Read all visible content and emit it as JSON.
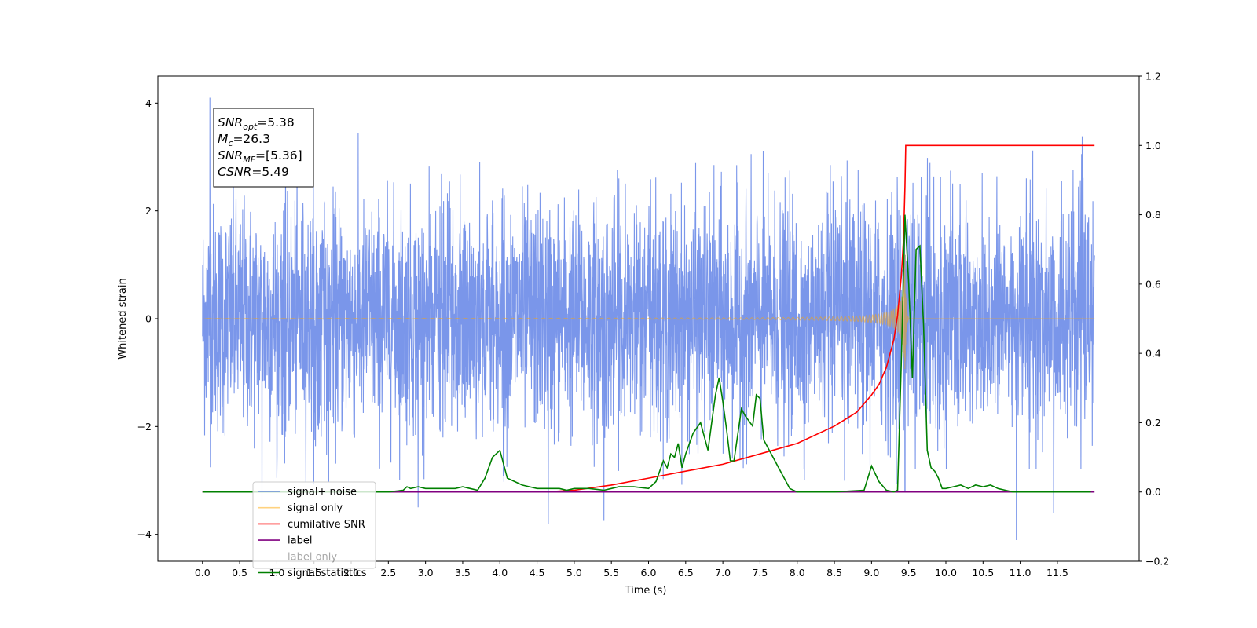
{
  "chart_data": {
    "type": "line",
    "title": "",
    "xlabel": "Time (s)",
    "ylabel": "Whitened strain",
    "y2label": "",
    "xlim": [
      -0.6,
      12.6
    ],
    "ylim": [
      -4.5,
      4.5
    ],
    "y2lim": [
      -0.2,
      1.2
    ],
    "x_ticks": [
      0.0,
      0.5,
      1.0,
      1.5,
      2.0,
      2.5,
      3.0,
      3.5,
      4.0,
      4.5,
      5.0,
      5.5,
      6.0,
      6.5,
      7.0,
      7.5,
      8.0,
      8.5,
      9.0,
      9.5,
      10.0,
      10.5,
      11.0,
      11.5
    ],
    "x_tick_labels": [
      "0.0",
      "0.5",
      "1.0",
      "1.5",
      "2.0",
      "2.5",
      "3.0",
      "3.5",
      "4.0",
      "4.5",
      "5.0",
      "5.5",
      "6.0",
      "6.5",
      "7.0",
      "7.5",
      "8.0",
      "8.5",
      "9.0",
      "9.5",
      "10.0",
      "10.5",
      "11.0",
      "11.5"
    ],
    "y_ticks": [
      -4,
      -2,
      0,
      2,
      4
    ],
    "y_tick_labels": [
      "−4",
      "−2",
      "0",
      "2",
      "4"
    ],
    "y2_ticks": [
      -0.2,
      0.0,
      0.2,
      0.4,
      0.6,
      0.8,
      1.0,
      1.2
    ],
    "y2_tick_labels": [
      "−0.2",
      "0.0",
      "0.2",
      "0.4",
      "0.6",
      "0.8",
      "1.0",
      "1.2"
    ],
    "grid": false,
    "legend_position": "lower-left",
    "annotation": {
      "lines": [
        {
          "sym": "SNR",
          "sub": "opt",
          "val": "=5.38"
        },
        {
          "sym": "M",
          "sub": "c",
          "val": "=26.3"
        },
        {
          "sym": "SNR",
          "sub": "MF",
          "val": "=[5.36]"
        },
        {
          "sym": "CSNR",
          "sub": "",
          "val": "=5.49"
        }
      ]
    },
    "series": [
      {
        "name": "signal+ noise",
        "axis": "left",
        "color": "#4169E1",
        "opacity": 0.7,
        "kind": "noise",
        "x_range": [
          0.0,
          12.0
        ],
        "envelope": [
          -3.1,
          3.6
        ],
        "outliers": [
          [
            0.1,
            4.1
          ],
          [
            11.45,
            3.7
          ],
          [
            9.45,
            -3.2
          ],
          [
            4.65,
            -3.8
          ],
          [
            10.95,
            -4.1
          ],
          [
            5.4,
            -3.75
          ],
          [
            2.9,
            -3.5
          ],
          [
            11.45,
            -3.6
          ],
          [
            0.8,
            -3.45
          ]
        ]
      },
      {
        "name": "signal only",
        "axis": "left",
        "color": "#FFA500",
        "opacity": 0.5,
        "kind": "chirp",
        "x_range": [
          0.0,
          12.0
        ],
        "merger_time": 9.45,
        "peak_amplitude": 1.2
      },
      {
        "name": "cumilative SNR",
        "axis": "right",
        "color": "#FF0000",
        "x": [
          0.0,
          4.6,
          5.0,
          5.5,
          6.0,
          6.5,
          7.0,
          7.5,
          8.0,
          8.5,
          8.8,
          9.0,
          9.1,
          9.2,
          9.3,
          9.35,
          9.4,
          9.43,
          9.45,
          9.46,
          12.0
        ],
        "values": [
          0.0,
          0.0,
          0.005,
          0.02,
          0.04,
          0.06,
          0.08,
          0.11,
          0.14,
          0.19,
          0.23,
          0.28,
          0.31,
          0.36,
          0.44,
          0.51,
          0.62,
          0.73,
          0.88,
          1.0,
          1.0
        ]
      },
      {
        "name": "label",
        "axis": "right",
        "color": "#800080",
        "x": [
          0.0,
          12.0
        ],
        "values": [
          0.0,
          0.0
        ]
      },
      {
        "name": "label only",
        "axis": "right",
        "color": "#000000",
        "hidden": true,
        "x": [],
        "values": []
      },
      {
        "name": "signal statistics",
        "axis": "right",
        "color": "#008000",
        "x": [
          0.0,
          2.5,
          2.7,
          2.75,
          2.8,
          2.9,
          3.0,
          3.2,
          3.4,
          3.5,
          3.6,
          3.7,
          3.8,
          3.9,
          3.95,
          4.0,
          4.1,
          4.2,
          4.3,
          4.4,
          4.5,
          4.6,
          4.7,
          4.8,
          4.9,
          5.0,
          5.2,
          5.4,
          5.5,
          5.6,
          5.8,
          6.0,
          6.1,
          6.2,
          6.25,
          6.3,
          6.35,
          6.4,
          6.45,
          6.5,
          6.6,
          6.7,
          6.8,
          6.85,
          6.9,
          6.95,
          7.0,
          7.05,
          7.1,
          7.15,
          7.25,
          7.3,
          7.4,
          7.45,
          7.5,
          7.55,
          7.6,
          7.7,
          7.8,
          7.9,
          8.0,
          8.5,
          8.9,
          9.0,
          9.1,
          9.2,
          9.3,
          9.35,
          9.4,
          9.45,
          9.5,
          9.55,
          9.6,
          9.65,
          9.7,
          9.75,
          9.8,
          9.85,
          9.9,
          9.95,
          10.0,
          10.1,
          10.2,
          10.3,
          10.4,
          10.5,
          10.6,
          10.7,
          10.8,
          10.9,
          11.0,
          11.5,
          11.95
        ],
        "values": [
          0.0,
          0.0,
          0.005,
          0.015,
          0.01,
          0.015,
          0.01,
          0.01,
          0.01,
          0.015,
          0.01,
          0.005,
          0.04,
          0.1,
          0.11,
          0.12,
          0.04,
          0.03,
          0.02,
          0.015,
          0.01,
          0.01,
          0.01,
          0.01,
          0.005,
          0.01,
          0.01,
          0.005,
          0.01,
          0.015,
          0.015,
          0.01,
          0.03,
          0.09,
          0.07,
          0.11,
          0.1,
          0.14,
          0.07,
          0.11,
          0.17,
          0.2,
          0.12,
          0.2,
          0.28,
          0.33,
          0.26,
          0.18,
          0.09,
          0.09,
          0.24,
          0.22,
          0.19,
          0.28,
          0.27,
          0.15,
          0.13,
          0.09,
          0.05,
          0.01,
          0.0,
          0.0,
          0.005,
          0.075,
          0.03,
          0.005,
          0.0,
          0.005,
          0.37,
          0.8,
          0.6,
          0.33,
          0.7,
          0.71,
          0.48,
          0.12,
          0.07,
          0.06,
          0.04,
          0.01,
          0.01,
          0.015,
          0.02,
          0.01,
          0.02,
          0.015,
          0.02,
          0.01,
          0.005,
          0.0,
          0.0,
          0.0,
          0.0
        ]
      }
    ]
  }
}
